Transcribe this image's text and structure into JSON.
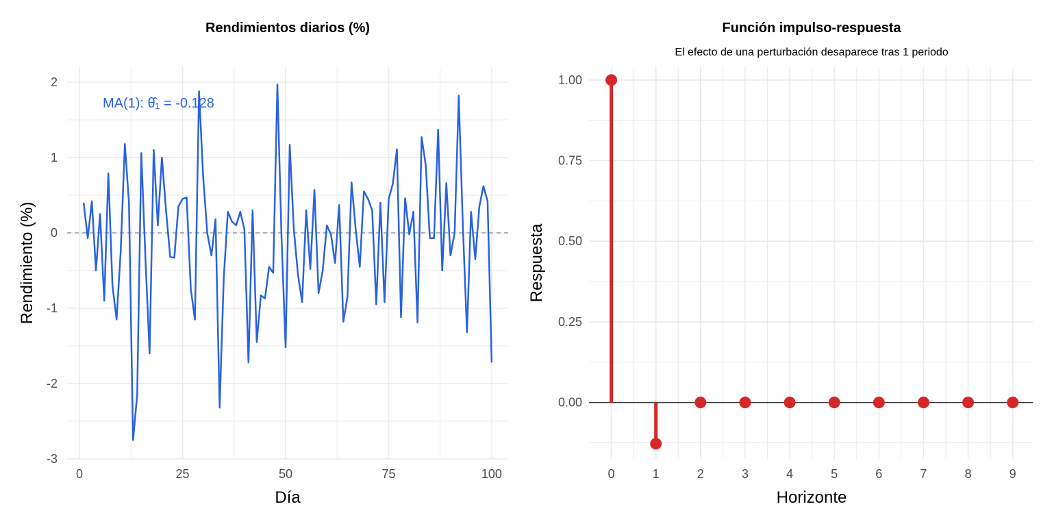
{
  "colors": {
    "line": "#2a62e0",
    "stem": "#d62728",
    "grid": "#ebebeb",
    "zero_dashed": "#999999",
    "zero_solid": "#333333"
  },
  "chart_data": [
    {
      "type": "line",
      "title": "Rendimientos diarios (%)",
      "xlabel": "Día",
      "ylabel": "Rendimiento (%)",
      "xlim": [
        -3,
        104
      ],
      "ylim": [
        -3,
        2.2
      ],
      "xticks": [
        0,
        25,
        50,
        75,
        100
      ],
      "yticks": [
        -3,
        -2,
        -1,
        0,
        1,
        2
      ],
      "reference_line": {
        "y": 0,
        "style": "dashed"
      },
      "annotation": "MA(1): θ̂₁ = -0.128",
      "x": [
        1,
        2,
        3,
        4,
        5,
        6,
        7,
        8,
        9,
        10,
        11,
        12,
        13,
        14,
        15,
        16,
        17,
        18,
        19,
        20,
        21,
        22,
        23,
        24,
        25,
        26,
        27,
        28,
        29,
        30,
        31,
        32,
        33,
        34,
        35,
        36,
        37,
        38,
        39,
        40,
        41,
        42,
        43,
        44,
        45,
        46,
        47,
        48,
        49,
        50,
        51,
        52,
        53,
        54,
        55,
        56,
        57,
        58,
        59,
        60,
        61,
        62,
        63,
        64,
        65,
        66,
        67,
        68,
        69,
        70,
        71,
        72,
        73,
        74,
        75,
        76,
        77,
        78,
        79,
        80,
        81,
        82,
        83,
        84,
        85,
        86,
        87,
        88,
        89,
        90,
        91,
        92,
        93,
        94,
        95,
        96,
        97,
        98,
        99,
        100
      ],
      "y": [
        0.4,
        -0.07,
        0.42,
        -0.5,
        0.25,
        -0.9,
        0.79,
        -0.7,
        -1.15,
        -0.25,
        1.18,
        0.4,
        -2.75,
        -2.15,
        1.06,
        -0.35,
        -1.6,
        1.1,
        0.1,
        1.0,
        0.3,
        -0.32,
        -0.33,
        0.35,
        0.45,
        0.47,
        -0.75,
        -1.15,
        1.88,
        0.75,
        0.0,
        -0.3,
        0.18,
        -2.32,
        -0.6,
        0.28,
        0.15,
        0.1,
        0.28,
        0.05,
        -1.72,
        0.3,
        -1.45,
        -0.83,
        -0.87,
        -0.45,
        -0.53,
        1.97,
        -0.05,
        -1.52,
        1.17,
        0.05,
        -0.55,
        -0.92,
        0.3,
        -0.48,
        0.57,
        -0.8,
        -0.5,
        0.1,
        -0.02,
        -0.4,
        0.37,
        -1.18,
        -0.85,
        0.67,
        0.05,
        -0.45,
        0.55,
        0.45,
        0.3,
        -0.95,
        0.4,
        -0.92,
        0.45,
        0.65,
        1.11,
        -1.12,
        0.46,
        -0.02,
        0.28,
        -1.19,
        1.27,
        0.9,
        -0.07,
        -0.07,
        1.37,
        -0.5,
        0.66,
        -0.3,
        0.0,
        1.82,
        0.1,
        -1.32,
        0.28,
        -0.35,
        0.35,
        0.62,
        0.42,
        -1.72
      ]
    },
    {
      "type": "stem",
      "title": "Función impulso-respuesta",
      "subtitle": "El efecto de una perturbación desaparece tras 1 periodo",
      "xlabel": "Horizonte",
      "ylabel": "Respuesta",
      "xlim": [
        -0.5,
        9.45
      ],
      "ylim": [
        -0.175,
        1.04
      ],
      "xticks": [
        0,
        1,
        2,
        3,
        4,
        5,
        6,
        7,
        8,
        9
      ],
      "yticks": [
        0.0,
        0.25,
        0.5,
        0.75,
        1.0
      ],
      "ytick_labels": [
        "0.00",
        "0.25",
        "0.50",
        "0.75",
        "1.00"
      ],
      "reference_line": {
        "y": 0,
        "style": "solid"
      },
      "x": [
        0,
        1,
        2,
        3,
        4,
        5,
        6,
        7,
        8,
        9
      ],
      "y": [
        1.0,
        -0.128,
        0,
        0,
        0,
        0,
        0,
        0,
        0,
        0
      ]
    }
  ]
}
